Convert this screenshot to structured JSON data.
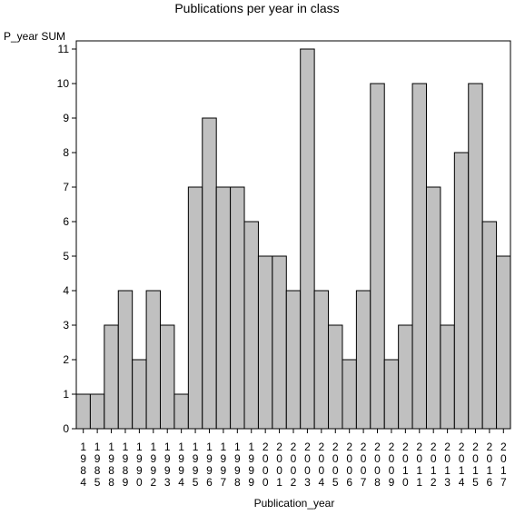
{
  "chart_data": {
    "type": "bar",
    "title": "Publications per year in class",
    "ylabel": "P_year SUM",
    "xlabel": "Publication_year",
    "ylim": [
      0,
      11
    ],
    "yticks": [
      "0",
      "1",
      "2",
      "3",
      "4",
      "5",
      "6",
      "7",
      "8",
      "9",
      "10",
      "11"
    ],
    "grid": false,
    "bar_color": "#c0c0c0",
    "categories": [
      "1984",
      "1985",
      "1988",
      "1989",
      "1990",
      "1992",
      "1993",
      "1994",
      "1995",
      "1996",
      "1997",
      "1998",
      "1999",
      "2000",
      "2001",
      "2002",
      "2003",
      "2004",
      "2005",
      "2006",
      "2007",
      "2008",
      "2009",
      "2010",
      "2011",
      "2012",
      "2013",
      "2014",
      "2015",
      "2016",
      "2017"
    ],
    "values": [
      1,
      1,
      3,
      4,
      2,
      4,
      3,
      1,
      7,
      9,
      7,
      7,
      6,
      5,
      5,
      4,
      11,
      4,
      3,
      2,
      4,
      10,
      2,
      3,
      10,
      7,
      3,
      8,
      10,
      6,
      5
    ]
  }
}
